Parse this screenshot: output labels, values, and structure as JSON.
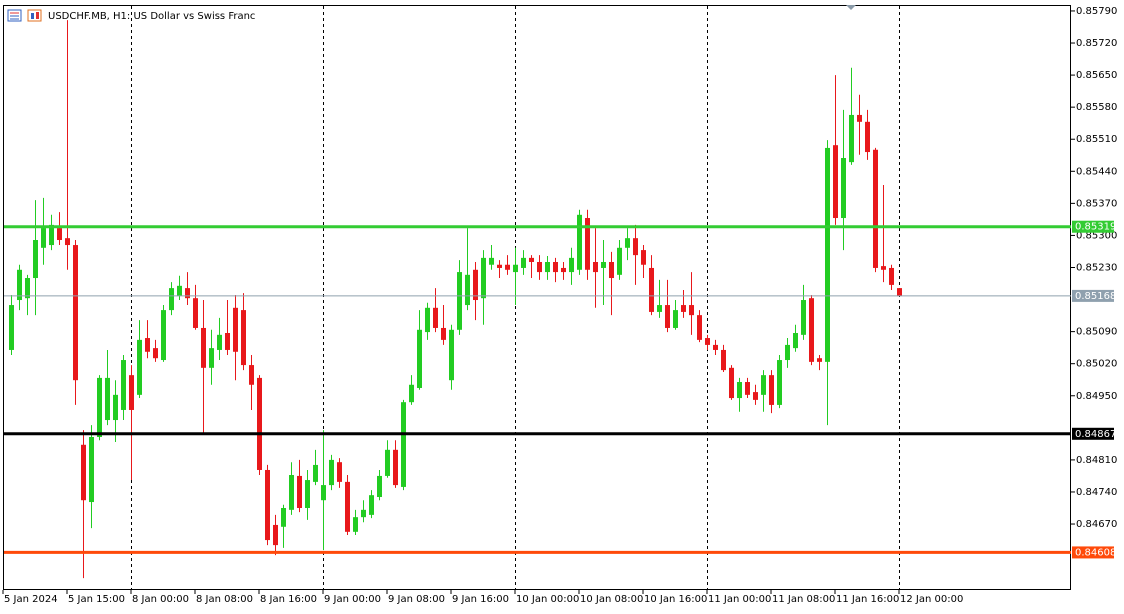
{
  "chart_data": {
    "type": "candlestick",
    "title": "USDCHF.MB, H1:  US Dollar vs Swiss Franc",
    "up_color": "#22cc22",
    "down_color": "#e8181b",
    "open": [
      0.8505,
      0.85159,
      0.85163,
      0.85207,
      0.85273,
      0.85279,
      0.85316,
      0.85294,
      0.85279,
      0.84843,
      0.84718,
      0.8486,
      0.84897,
      0.84897,
      0.84919,
      0.84995,
      0.84952,
      0.85076,
      0.85054,
      0.85028,
      0.85137,
      0.85168,
      0.85185,
      0.85163,
      0.85098,
      0.85011,
      0.8505,
      0.85087,
      0.85142,
      0.85137,
      0.85017,
      0.84989,
      0.84788,
      0.84668,
      0.84664,
      0.84701,
      0.84775,
      0.84705,
      0.84762,
      0.84722,
      0.84755,
      0.84805,
      0.84762,
      0.84653,
      0.84685,
      0.8469,
      0.84729,
      0.84775,
      0.84832,
      0.84751,
      0.84936,
      0.84967,
      0.85089,
      0.85142,
      0.85098,
      0.84984,
      0.85094,
      0.85148,
      0.85225,
      0.85163,
      0.85236,
      0.85236,
      0.85236,
      0.8522,
      0.85229,
      0.85251,
      0.85242,
      0.8522,
      0.85242,
      0.85229,
      0.8522,
      0.85225,
      0.85338,
      0.85242,
      0.85229,
      0.85242,
      0.85214,
      0.85273,
      0.85294,
      0.85268,
      0.85229,
      0.85133,
      0.85148,
      0.85098,
      0.85148,
      0.85148,
      0.85126,
      0.85076,
      0.85061,
      0.8505,
      0.85011,
      0.84945,
      0.8498,
      0.84958,
      0.84952,
      0.84995,
      0.8493,
      0.85028,
      0.85054,
      0.85083,
      0.85163,
      0.85032,
      0.85024,
      0.85497,
      0.85338,
      0.8546,
      0.85563,
      0.85548,
      0.85487,
      0.85233,
      0.85229,
      0.85185
    ],
    "high": [
      0.8517,
      0.85236,
      0.85214,
      0.85377,
      0.85382,
      0.85345,
      0.85351,
      0.8577,
      0.8529,
      0.84875,
      0.84886,
      0.84995,
      0.8505,
      0.84984,
      0.85039,
      0.85017,
      0.85115,
      0.85115,
      0.85072,
      0.85148,
      0.85198,
      0.85212,
      0.8522,
      0.85192,
      0.85159,
      0.85094,
      0.8512,
      0.85159,
      0.8517,
      0.85174,
      0.85039,
      0.84995,
      0.84799,
      0.8469,
      0.84712,
      0.84805,
      0.8481,
      0.84788,
      0.84832,
      0.84875,
      0.84821,
      0.84814,
      0.84777,
      0.84701,
      0.84722,
      0.84744,
      0.84788,
      0.84853,
      0.84853,
      0.84941,
      0.84995,
      0.85137,
      0.85153,
      0.85185,
      0.85148,
      0.85105,
      0.85246,
      0.85316,
      0.85242,
      0.85268,
      0.85279,
      0.85246,
      0.85257,
      0.85273,
      0.85268,
      0.85257,
      0.85257,
      0.85255,
      0.85251,
      0.85242,
      0.85273,
      0.85356,
      0.85356,
      0.85316,
      0.8529,
      0.85264,
      0.8529,
      0.85316,
      0.85323,
      0.85279,
      0.85257,
      0.85203,
      0.85203,
      0.85159,
      0.85181,
      0.8522,
      0.85137,
      0.85083,
      0.85072,
      0.85061,
      0.85017,
      0.84989,
      0.84989,
      0.84974,
      0.85006,
      0.85006,
      0.85039,
      0.85076,
      0.85105,
      0.85192,
      0.8517,
      0.85039,
      0.85508,
      0.8565,
      0.85574,
      0.85666,
      0.85607,
      0.85574,
      0.85491,
      0.8541,
      0.85236,
      0.85185
    ],
    "low": [
      0.85039,
      0.85137,
      0.85126,
      0.85126,
      0.85236,
      0.85268,
      0.85279,
      0.85225,
      0.8493,
      0.84552,
      0.84661,
      0.84853,
      0.84886,
      0.84849,
      0.84897,
      0.84766,
      0.84945,
      0.85032,
      0.85024,
      0.85024,
      0.85126,
      0.85159,
      0.85148,
      0.85094,
      0.84869,
      0.84974,
      0.85028,
      0.85039,
      0.84984,
      0.85006,
      0.84919,
      0.84777,
      0.84624,
      0.84602,
      0.84618,
      0.8469,
      0.84696,
      0.84679,
      0.84755,
      0.84613,
      0.84744,
      0.84749,
      0.84646,
      0.84646,
      0.84674,
      0.84683,
      0.84722,
      0.84771,
      0.84749,
      0.84744,
      0.8493,
      0.84963,
      0.85072,
      0.85089,
      0.85061,
      0.84963,
      0.85083,
      0.85137,
      0.85115,
      0.85105,
      0.85225,
      0.85207,
      0.85214,
      0.85148,
      0.85214,
      0.85207,
      0.85203,
      0.85203,
      0.85198,
      0.85203,
      0.85192,
      0.85214,
      0.85203,
      0.85142,
      0.85148,
      0.85126,
      0.85203,
      0.85246,
      0.85192,
      0.85207,
      0.85126,
      0.8512,
      0.85089,
      0.85094,
      0.8512,
      0.85083,
      0.85067,
      0.8505,
      0.85039,
      0.85002,
      0.84941,
      0.84915,
      0.84945,
      0.8493,
      0.84915,
      0.84912,
      0.84923,
      0.85011,
      0.85046,
      0.85072,
      0.85017,
      0.85006,
      0.84886,
      0.85323,
      0.85268,
      0.85454,
      0.85476,
      0.85465,
      0.8522,
      0.85198,
      0.85181,
      0.85168
    ],
    "close": [
      0.85148,
      0.85225,
      0.85207,
      0.8529,
      0.85316,
      0.85323,
      0.8529,
      0.85279,
      0.84984,
      0.84722,
      0.8486,
      0.84989,
      0.84989,
      0.84952,
      0.85028,
      0.84919,
      0.85072,
      0.85046,
      0.85032,
      0.85137,
      0.85185,
      0.8519,
      0.85163,
      0.85098,
      0.85011,
      0.85054,
      0.85083,
      0.8505,
      0.85046,
      0.85017,
      0.84974,
      0.84788,
      0.84635,
      0.84624,
      0.84705,
      0.84777,
      0.84705,
      0.84766,
      0.84799,
      0.84755,
      0.8481,
      0.84762,
      0.84653,
      0.84685,
      0.84701,
      0.84733,
      0.84775,
      0.84832,
      0.84755,
      0.84936,
      0.84974,
      0.85094,
      0.85142,
      0.85098,
      0.85072,
      0.85094,
      0.8522,
      0.85214,
      0.85159,
      0.85251,
      0.85251,
      0.85229,
      0.85225,
      0.85236,
      0.85251,
      0.85242,
      0.8522,
      0.85242,
      0.8522,
      0.8522,
      0.85251,
      0.85345,
      0.85225,
      0.8522,
      0.85242,
      0.85207,
      0.85273,
      0.85294,
      0.85257,
      0.85236,
      0.85133,
      0.85148,
      0.85098,
      0.85137,
      0.85133,
      0.85126,
      0.85072,
      0.85061,
      0.8505,
      0.85006,
      0.84945,
      0.8498,
      0.84952,
      0.84941,
      0.84995,
      0.8493,
      0.85028,
      0.85061,
      0.85087,
      0.85159,
      0.85024,
      0.85024,
      0.85491,
      0.85338,
      0.85469,
      0.85563,
      0.85548,
      0.85482,
      0.85229,
      0.85225,
      0.85192,
      0.85168
    ],
    "xlim": [
      -1,
      132.5
    ],
    "xticks": [
      {
        "value": -1,
        "label": "5 Jan 2024"
      },
      {
        "value": 7,
        "label": "5 Jan 15:00"
      },
      {
        "value": 15,
        "label": "8 Jan 00:00"
      },
      {
        "value": 23,
        "label": "8 Jan 08:00"
      },
      {
        "value": 31,
        "label": "8 Jan 16:00"
      },
      {
        "value": 39,
        "label": "9 Jan 00:00"
      },
      {
        "value": 47,
        "label": "9 Jan 08:00"
      },
      {
        "value": 55,
        "label": "9 Jan 16:00"
      },
      {
        "value": 63,
        "label": "10 Jan 00:00"
      },
      {
        "value": 71,
        "label": "10 Jan 08:00"
      },
      {
        "value": 79,
        "label": "10 Jan 16:00"
      },
      {
        "value": 87,
        "label": "11 Jan 00:00"
      },
      {
        "value": 95,
        "label": "11 Jan 08:00"
      },
      {
        "value": 103,
        "label": "11 Jan 16:00"
      },
      {
        "value": 111,
        "label": "12 Jan 00:00"
      }
    ],
    "ylim": [
      0.84526,
      0.85803
    ],
    "yticks": [
      {
        "value": 0.8579,
        "label": "0.85790"
      },
      {
        "value": 0.8572,
        "label": "0.85720"
      },
      {
        "value": 0.8565,
        "label": "0.85650"
      },
      {
        "value": 0.8558,
        "label": "0.85580"
      },
      {
        "value": 0.8551,
        "label": "0.85510"
      },
      {
        "value": 0.8544,
        "label": "0.85440"
      },
      {
        "value": 0.8537,
        "label": "0.85370"
      },
      {
        "value": 0.853,
        "label": "0.85300"
      },
      {
        "value": 0.8523,
        "label": "0.85230"
      },
      {
        "value": 0.8509,
        "label": "0.85090"
      },
      {
        "value": 0.8502,
        "label": "0.85020"
      },
      {
        "value": 0.8495,
        "label": "0.84950"
      },
      {
        "value": 0.8481,
        "label": "0.84810"
      },
      {
        "value": 0.8474,
        "label": "0.84740"
      },
      {
        "value": 0.8467,
        "label": "0.84670"
      }
    ],
    "levels": [
      {
        "value": 0.85319,
        "color": "#33cc33"
      },
      {
        "value": 0.85168,
        "color": "#8fa0ae"
      },
      {
        "value": 0.84867,
        "color": "#000000"
      },
      {
        "value": 0.84608,
        "color": "#ff4a0a"
      }
    ]
  }
}
